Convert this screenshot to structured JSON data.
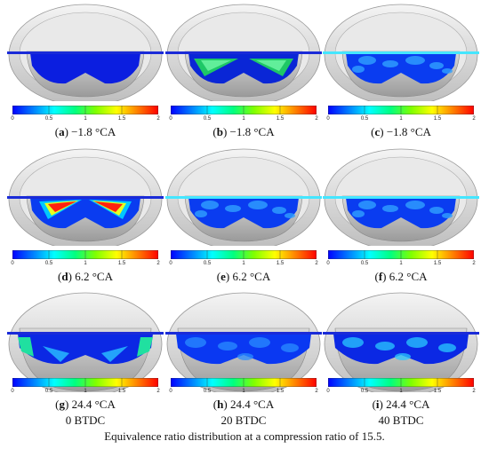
{
  "colorbar": {
    "ticks": [
      "0",
      "0.5",
      "1",
      "1.5",
      "2"
    ],
    "stops": [
      "#0000ff",
      "#0080ff",
      "#00ffff",
      "#00ff80",
      "#80ff00",
      "#ffff00",
      "#ff8000",
      "#ff0000"
    ]
  },
  "panels": [
    {
      "letter": "a",
      "text": " −1.8 °CA",
      "sub": "",
      "view": "top",
      "pattern": "full_blue"
    },
    {
      "letter": "b",
      "text": " −1.8 °CA",
      "sub": "",
      "view": "top",
      "pattern": "spray_green"
    },
    {
      "letter": "c",
      "text": " −1.8 °CA",
      "sub": "",
      "view": "top",
      "pattern": "cyan_mix"
    },
    {
      "letter": "d",
      "text": " 6.2 °CA",
      "sub": "",
      "view": "top",
      "pattern": "spray_red"
    },
    {
      "letter": "e",
      "text": " 6.2 °CA",
      "sub": "",
      "view": "top",
      "pattern": "cyan_mix"
    },
    {
      "letter": "f",
      "text": " 6.2 °CA",
      "sub": "",
      "view": "top",
      "pattern": "cyan_mix"
    },
    {
      "letter": "g",
      "text": " 24.4 °CA",
      "sub": "0 BTDC",
      "view": "front",
      "pattern": "front_green"
    },
    {
      "letter": "h",
      "text": " 24.4 °CA",
      "sub": "20 BTDC",
      "view": "front",
      "pattern": "front_blue"
    },
    {
      "letter": "i",
      "text": " 24.4 °CA",
      "sub": "40 BTDC",
      "view": "front",
      "pattern": "front_cyan"
    }
  ],
  "figure_caption": "Equivalence ratio distribution at a compression ratio of 15.5."
}
